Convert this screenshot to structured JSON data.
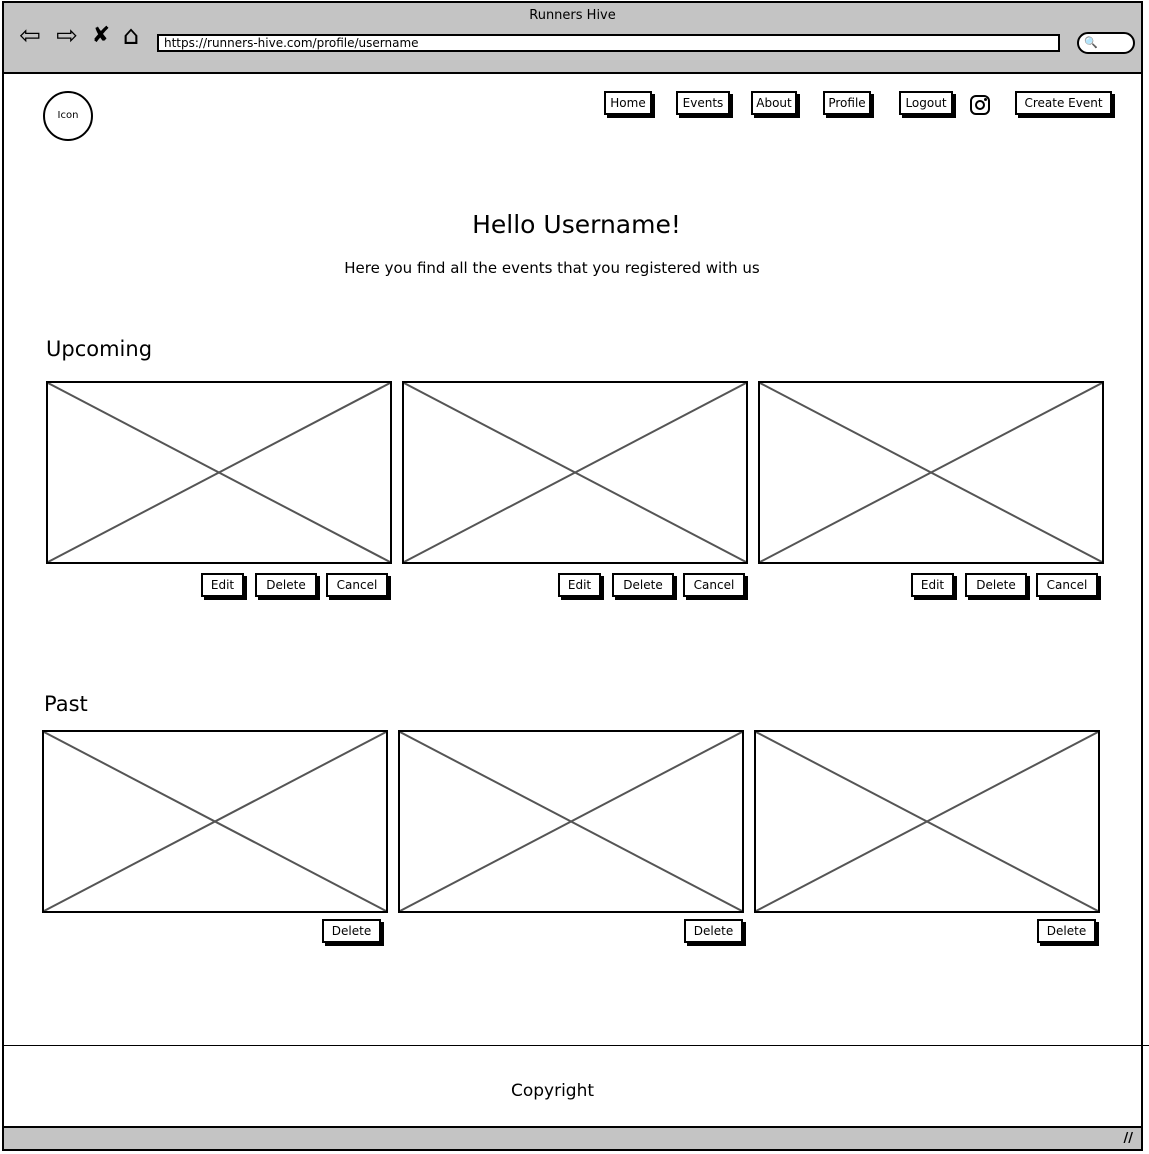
{
  "browser": {
    "title": "Runners Hive",
    "url": "https://runners-hive.com/profile/username",
    "back_glyph": "⇦",
    "forward_glyph": "⇨",
    "stop_glyph": "✘",
    "home_glyph": "⌂",
    "search_glyph": "🔍"
  },
  "header": {
    "logo_label": "Icon",
    "nav": {
      "home": "Home",
      "events": "Events",
      "about": "About",
      "profile": "Profile",
      "logout": "Logout"
    },
    "create_event": "Create Event",
    "social_icon": "instagram-icon"
  },
  "main": {
    "greeting": "Hello Username!",
    "subtitle": "Here you find all the events that you registered with us",
    "upcoming": {
      "title": "Upcoming",
      "card_buttons": {
        "edit": "Edit",
        "delete": "Delete",
        "cancel": "Cancel"
      }
    },
    "past": {
      "title": "Past",
      "card_buttons": {
        "delete": "Delete"
      }
    }
  },
  "footer": {
    "copyright": "Copyright"
  },
  "colors": {
    "chrome": "#c4c4c4",
    "line": "#000000",
    "placeholder_x": "#555555"
  }
}
